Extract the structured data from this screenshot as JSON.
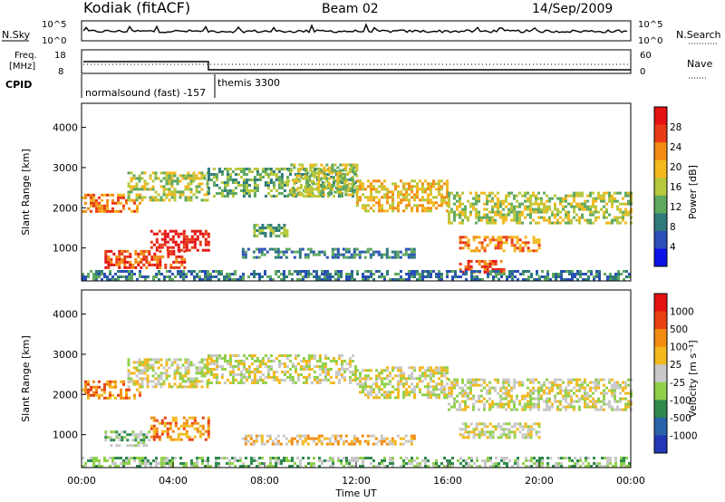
{
  "header": {
    "station": "Kodiak (fitACF)",
    "beam": "Beam 02",
    "date": "14/Sep/2009"
  },
  "status_panels": {
    "nsky_label": "N.Sky",
    "nsearch_label": "N.Search",
    "nsky_ticks": [
      "10^5",
      "10^0"
    ],
    "nsearch_ticks": [
      "10^5",
      "10^0"
    ],
    "freq_label_1": "Freq.",
    "freq_label_2": "[MHz]",
    "freq_ticks": [
      "18",
      "8"
    ],
    "nave_label": "Nave",
    "nave_ticks": [
      "60",
      "0"
    ],
    "cpid_label": "CPID",
    "cpid_1": "normalsound (fast) -157",
    "cpid_2": "themis 3300"
  },
  "chart_data": [
    {
      "type": "heatmap",
      "name": "power",
      "ylabel": "Slant Range [km]",
      "ylim": [
        180,
        4600
      ],
      "yticks": [
        "1000",
        "2000",
        "3000",
        "4000"
      ],
      "colorbar_label": "Power [dB]",
      "colorbar_ticks": [
        "4",
        "8",
        "12",
        "16",
        "20",
        "24",
        "28"
      ],
      "colors": [
        "#0a14e6",
        "#2a4fb8",
        "#2f7a7a",
        "#5fa85f",
        "#b6c83c",
        "#f2b81e",
        "#f28c10",
        "#e83a14",
        "#e41111"
      ],
      "bands": [
        {
          "t0": 0.0,
          "t1": 2.5,
          "r0": 1900,
          "r1": 2350,
          "level": 6
        },
        {
          "t0": 1.0,
          "t1": 4.5,
          "r0": 500,
          "r1": 950,
          "level": 7
        },
        {
          "t0": 3.0,
          "t1": 5.5,
          "r0": 950,
          "r1": 1450,
          "level": 8
        },
        {
          "t0": 2.0,
          "t1": 5.5,
          "r0": 2200,
          "r1": 2900,
          "level": 4
        },
        {
          "t0": 5.5,
          "t1": 12.0,
          "r0": 2300,
          "r1": 3000,
          "level": 3
        },
        {
          "t0": 9.0,
          "t1": 12.0,
          "r0": 2350,
          "r1": 3100,
          "level": 4
        },
        {
          "t0": 12.0,
          "t1": 16.0,
          "r0": 1900,
          "r1": 2700,
          "level": 5
        },
        {
          "t0": 16.0,
          "t1": 24.0,
          "r0": 1600,
          "r1": 2400,
          "level": 4
        },
        {
          "t0": 7.0,
          "t1": 14.5,
          "r0": 750,
          "r1": 1000,
          "level": 2
        },
        {
          "t0": 7.5,
          "t1": 9.0,
          "r0": 1300,
          "r1": 1600,
          "level": 3
        },
        {
          "t0": 16.5,
          "t1": 18.5,
          "r0": 400,
          "r1": 700,
          "level": 7
        },
        {
          "t0": 16.5,
          "t1": 20.0,
          "r0": 900,
          "r1": 1300,
          "level": 6
        },
        {
          "t0": 0.0,
          "t1": 24.0,
          "r0": 180,
          "r1": 450,
          "level": 2
        }
      ]
    },
    {
      "type": "heatmap",
      "name": "velocity",
      "ylabel": "Slant Range [km]",
      "ylim": [
        180,
        4600
      ],
      "yticks": [
        "1000",
        "2000",
        "3000",
        "4000"
      ],
      "colorbar_label": "Velocity [m s⁻¹]",
      "colorbar_ticks": [
        "1000",
        "500",
        "100",
        "25",
        "-25",
        "-100",
        "-500",
        "-1000"
      ],
      "colors": [
        "#2338b6",
        "#2a64a8",
        "#2f8a4e",
        "#8fd04a",
        "#c8c8c8",
        "#f2b81e",
        "#f28c10",
        "#e84010",
        "#e41111"
      ],
      "bands": [
        {
          "t0": 0.0,
          "t1": 2.5,
          "r0": 1900,
          "r1": 2350,
          "level": 6
        },
        {
          "t0": 1.0,
          "t1": 3.0,
          "r0": 700,
          "r1": 1100,
          "level": 3
        },
        {
          "t0": 3.0,
          "t1": 5.5,
          "r0": 900,
          "r1": 1450,
          "level": 6
        },
        {
          "t0": 2.0,
          "t1": 5.5,
          "r0": 2200,
          "r1": 2900,
          "level": 4
        },
        {
          "t0": 5.5,
          "t1": 12.0,
          "r0": 2300,
          "r1": 3000,
          "level": 4
        },
        {
          "t0": 12.0,
          "t1": 16.0,
          "r0": 1900,
          "r1": 2700,
          "level": 4
        },
        {
          "t0": 16.0,
          "t1": 24.0,
          "r0": 1600,
          "r1": 2400,
          "level": 4
        },
        {
          "t0": 7.0,
          "t1": 14.5,
          "r0": 750,
          "r1": 1000,
          "level": 5
        },
        {
          "t0": 16.5,
          "t1": 20.0,
          "r0": 900,
          "r1": 1300,
          "level": 4
        },
        {
          "t0": 0.0,
          "t1": 24.0,
          "r0": 180,
          "r1": 450,
          "level": 3
        }
      ]
    }
  ],
  "xaxis": {
    "label": "Time UT",
    "ticks": [
      "00:00",
      "04:00",
      "08:00",
      "12:00",
      "16:00",
      "20:00",
      "00:00"
    ]
  }
}
